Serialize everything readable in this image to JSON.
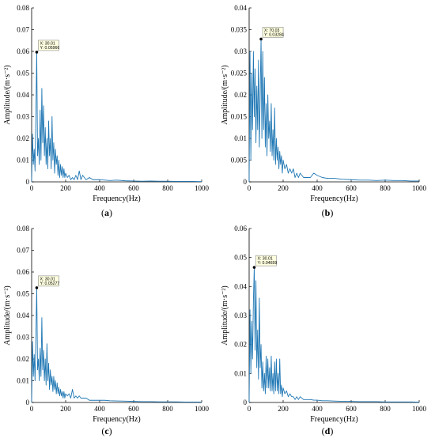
{
  "chart_data": [
    {
      "type": "line",
      "caption_letter": "a",
      "xlabel": "Frequency(Hz)",
      "ylabel": "Amplitude/(m·s⁻²)",
      "xlim": [
        0,
        1000
      ],
      "ylim": [
        0,
        0.08
      ],
      "xticks": [
        0,
        200,
        400,
        600,
        800,
        1000
      ],
      "yticks": [
        0,
        0.01,
        0.02,
        0.03,
        0.04,
        0.05,
        0.06,
        0.07,
        0.08
      ],
      "line_color": "#1f77b4",
      "marker": {
        "x_label": "X: 30.01",
        "y_label": "Y: 0.05966",
        "x": 30.01,
        "y": 0.05966
      },
      "series": [
        {
          "x": [
            0,
            5,
            10,
            15,
            20,
            25,
            30.01,
            35,
            40,
            45,
            50,
            55,
            60,
            65,
            70,
            75,
            80,
            85,
            90,
            95,
            100,
            105,
            110,
            115,
            120,
            125,
            130,
            135,
            140,
            145,
            150,
            155,
            160,
            165,
            170,
            175,
            180,
            185,
            190,
            195,
            200,
            210,
            220,
            230,
            240,
            250,
            260,
            270,
            280,
            290,
            300,
            320,
            340,
            360,
            380,
            400,
            430,
            460,
            500,
            550,
            600,
            650,
            700,
            750,
            800,
            850,
            900,
            950,
            1000
          ],
          "y": [
            0,
            0.022,
            0.008,
            0.015,
            0.005,
            0.03,
            0.05966,
            0.012,
            0.02,
            0.008,
            0.033,
            0.01,
            0.043,
            0.018,
            0.035,
            0.012,
            0.025,
            0.008,
            0.02,
            0.006,
            0.028,
            0.012,
            0.02,
            0.006,
            0.03,
            0.01,
            0.018,
            0.004,
            0.015,
            0.008,
            0.012,
            0.003,
            0.01,
            0.002,
            0.008,
            0.003,
            0.007,
            0.002,
            0.006,
            0.002,
            0.004,
            0.002,
            0.003,
            0.001,
            0.002,
            0.001,
            0.003,
            0.001,
            0.005,
            0.001,
            0.003,
            0.001,
            0.002,
            0.001,
            0.001,
            0.001,
            0.0008,
            0.0006,
            0.0008,
            0.0005,
            0.0004,
            0.0003,
            0.0004,
            0.0003,
            0.0003,
            0.0002,
            0.0002,
            0.0002,
            0.0001
          ]
        }
      ]
    },
    {
      "type": "line",
      "caption_letter": "b",
      "xlabel": "Frequency(Hz)",
      "ylabel": "Amplitude/(m·s⁻²)",
      "xlim": [
        0,
        1000
      ],
      "ylim": [
        0,
        0.04
      ],
      "xticks": [
        0,
        200,
        400,
        600,
        800,
        1000
      ],
      "yticks": [
        0,
        0.005,
        0.01,
        0.015,
        0.02,
        0.025,
        0.03,
        0.035,
        0.04
      ],
      "line_color": "#1f77b4",
      "marker": {
        "x_label": "X: 70.03",
        "y_label": "Y: 0.03284",
        "x": 70.03,
        "y": 0.03284
      },
      "series": [
        {
          "x": [
            0,
            5,
            10,
            15,
            20,
            25,
            30,
            35,
            40,
            45,
            50,
            55,
            60,
            65,
            70.03,
            75,
            80,
            85,
            90,
            95,
            100,
            105,
            110,
            115,
            120,
            125,
            130,
            135,
            140,
            145,
            150,
            155,
            160,
            165,
            170,
            175,
            180,
            185,
            190,
            195,
            200,
            210,
            220,
            230,
            240,
            250,
            260,
            270,
            280,
            290,
            300,
            320,
            340,
            360,
            380,
            400,
            430,
            460,
            500,
            550,
            600,
            650,
            700,
            750,
            800,
            850,
            900,
            950,
            1000
          ],
          "y": [
            0,
            0.03,
            0.005,
            0.025,
            0.012,
            0.03,
            0.015,
            0.026,
            0.009,
            0.022,
            0.012,
            0.028,
            0.008,
            0.02,
            0.03284,
            0.01,
            0.03,
            0.012,
            0.024,
            0.008,
            0.018,
            0.006,
            0.02,
            0.01,
            0.014,
            0.007,
            0.018,
            0.006,
            0.012,
            0.005,
            0.017,
            0.004,
            0.01,
            0.005,
            0.008,
            0.003,
            0.007,
            0.004,
            0.006,
            0.002,
            0.005,
            0.003,
            0.004,
            0.002,
            0.003,
            0.002,
            0.003,
            0.001,
            0.002,
            0.001,
            0.002,
            0.001,
            0.001,
            0.001,
            0.002,
            0.0015,
            0.001,
            0.0008,
            0.0008,
            0.0006,
            0.0005,
            0.0004,
            0.0004,
            0.0003,
            0.0004,
            0.0003,
            0.0003,
            0.0002,
            0.0002
          ]
        }
      ]
    },
    {
      "type": "line",
      "caption_letter": "c",
      "xlabel": "Frequency(Hz)",
      "ylabel": "Amplitude/(m·s⁻²)",
      "xlim": [
        0,
        1000
      ],
      "ylim": [
        0,
        0.08
      ],
      "xticks": [
        0,
        200,
        400,
        600,
        800,
        1000
      ],
      "yticks": [
        0,
        0.01,
        0.02,
        0.03,
        0.04,
        0.05,
        0.06,
        0.07,
        0.08
      ],
      "line_color": "#1f77b4",
      "marker": {
        "x_label": "X: 30.01",
        "y_label": "Y: 0.05277",
        "x": 30.01,
        "y": 0.05277
      },
      "series": [
        {
          "x": [
            0,
            5,
            10,
            15,
            20,
            25,
            30.01,
            35,
            40,
            45,
            50,
            55,
            60,
            65,
            70,
            75,
            80,
            85,
            90,
            95,
            100,
            105,
            110,
            115,
            120,
            125,
            130,
            135,
            140,
            145,
            150,
            155,
            160,
            165,
            170,
            175,
            180,
            185,
            190,
            195,
            200,
            210,
            220,
            230,
            240,
            250,
            260,
            270,
            280,
            290,
            300,
            320,
            340,
            360,
            380,
            400,
            430,
            460,
            500,
            550,
            600,
            650,
            700,
            750,
            800,
            850,
            900,
            950,
            1000
          ],
          "y": [
            0,
            0.028,
            0.012,
            0.022,
            0.01,
            0.03,
            0.05277,
            0.015,
            0.02,
            0.01,
            0.025,
            0.012,
            0.039,
            0.015,
            0.024,
            0.01,
            0.02,
            0.008,
            0.027,
            0.01,
            0.018,
            0.006,
            0.015,
            0.008,
            0.012,
            0.005,
            0.012,
            0.006,
            0.01,
            0.004,
            0.009,
            0.004,
            0.007,
            0.003,
            0.006,
            0.003,
            0.005,
            0.002,
            0.005,
            0.002,
            0.004,
            0.003,
            0.004,
            0.002,
            0.006,
            0.002,
            0.003,
            0.002,
            0.003,
            0.002,
            0.002,
            0.002,
            0.001,
            0.001,
            0.001,
            0.001,
            0.001,
            0.0008,
            0.0007,
            0.0006,
            0.0005,
            0.0004,
            0.0004,
            0.0003,
            0.0003,
            0.0003,
            0.0002,
            0.0002,
            0.0002
          ]
        }
      ]
    },
    {
      "type": "line",
      "caption_letter": "d",
      "xlabel": "Frequency(Hz)",
      "ylabel": "Amplitude/(m·s⁻²)",
      "xlim": [
        0,
        1000
      ],
      "ylim": [
        0,
        0.06
      ],
      "xticks": [
        0,
        200,
        400,
        600,
        800,
        1000
      ],
      "yticks": [
        0,
        0.01,
        0.02,
        0.03,
        0.04,
        0.05,
        0.06
      ],
      "line_color": "#1f77b4",
      "marker": {
        "x_label": "X: 30.01",
        "y_label": "Y: 0.04659",
        "x": 30.01,
        "y": 0.04659
      },
      "series": [
        {
          "x": [
            0,
            5,
            10,
            15,
            20,
            25,
            30.01,
            35,
            40,
            45,
            50,
            55,
            60,
            65,
            70,
            75,
            80,
            85,
            90,
            95,
            100,
            105,
            110,
            115,
            120,
            125,
            130,
            135,
            140,
            145,
            150,
            155,
            160,
            165,
            170,
            175,
            180,
            185,
            190,
            195,
            200,
            210,
            220,
            230,
            240,
            250,
            260,
            270,
            280,
            290,
            300,
            320,
            340,
            360,
            380,
            400,
            430,
            460,
            500,
            550,
            600,
            650,
            700,
            750,
            800,
            850,
            900,
            950,
            1000
          ],
          "y": [
            0,
            0.032,
            0.01,
            0.028,
            0.015,
            0.035,
            0.04659,
            0.018,
            0.042,
            0.012,
            0.025,
            0.008,
            0.036,
            0.012,
            0.02,
            0.005,
            0.014,
            0.004,
            0.01,
            0.003,
            0.016,
            0.005,
            0.015,
            0.005,
            0.012,
            0.004,
            0.016,
            0.004,
            0.01,
            0.003,
            0.014,
            0.004,
            0.015,
            0.004,
            0.01,
            0.003,
            0.015,
            0.003,
            0.006,
            0.002,
            0.005,
            0.003,
            0.004,
            0.002,
            0.003,
            0.002,
            0.002,
            0.001,
            0.002,
            0.001,
            0.002,
            0.001,
            0.001,
            0.001,
            0.0008,
            0.0008,
            0.0006,
            0.0006,
            0.0005,
            0.0004,
            0.0004,
            0.0003,
            0.0003,
            0.0003,
            0.0002,
            0.0002,
            0.0002,
            0.0002,
            0.0001
          ]
        }
      ]
    }
  ]
}
